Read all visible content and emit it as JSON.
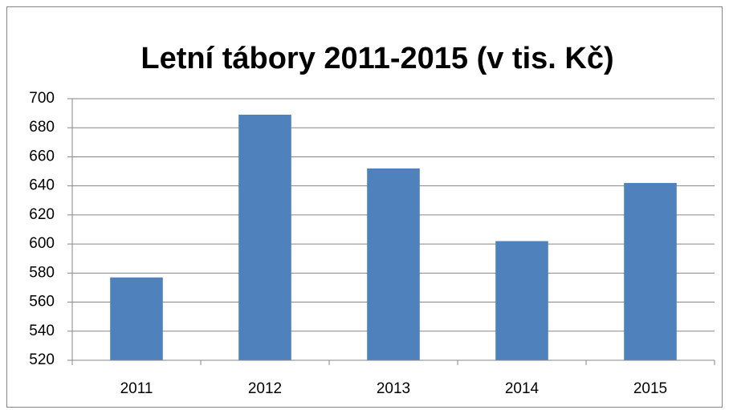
{
  "chart_data": {
    "type": "bar",
    "title": "Letní tábory 2011-2015 (v tis. Kč)",
    "categories": [
      "2011",
      "2012",
      "2013",
      "2014",
      "2015"
    ],
    "values": [
      577,
      689,
      652,
      602,
      642
    ],
    "color": "#4f81bd",
    "ylim": [
      520,
      700
    ],
    "yticks": [
      520,
      540,
      560,
      580,
      600,
      620,
      640,
      660,
      680,
      700
    ],
    "grid": true
  }
}
